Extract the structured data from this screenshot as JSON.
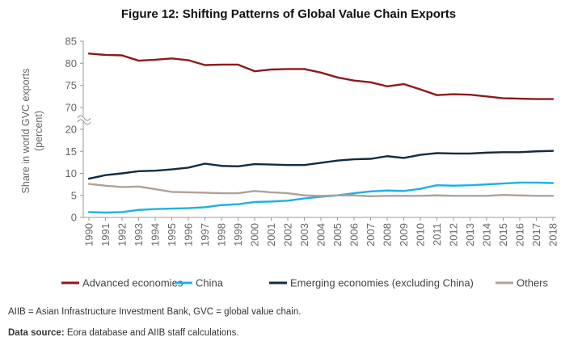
{
  "chart_data": {
    "type": "line",
    "title": "Figure 12: Shifting Patterns of Global Value Chain Exports",
    "ylabel_line1": "Share in world GVC exports",
    "ylabel_line2": "(percent)",
    "xlabel": "",
    "x": [
      "1990",
      "1991",
      "1992",
      "1993",
      "1994",
      "1995",
      "1996",
      "1997",
      "1998",
      "1999",
      "2000",
      "2001",
      "2002",
      "2003",
      "2004",
      "2005",
      "2006",
      "2007",
      "2008",
      "2009",
      "2010",
      "2011",
      "2012",
      "2013",
      "2014",
      "2015",
      "2016",
      "2017",
      "2018"
    ],
    "y_axis": {
      "broken": true,
      "lower_range": [
        0,
        20
      ],
      "upper_range": [
        70,
        85
      ],
      "ticks": [
        "0",
        "5",
        "10",
        "15",
        "20",
        "70",
        "75",
        "80",
        "85"
      ]
    },
    "grid": false,
    "legend_position": "bottom",
    "series": [
      {
        "name": "Advanced economies",
        "color": "#8b1a1f",
        "values": [
          82.2,
          81.9,
          81.8,
          80.6,
          80.8,
          81.1,
          80.7,
          79.6,
          79.7,
          79.7,
          78.2,
          78.6,
          78.7,
          78.7,
          77.9,
          76.8,
          76.1,
          75.7,
          74.8,
          75.3,
          74.1,
          72.8,
          73.0,
          72.9,
          72.5,
          72.1,
          72.0,
          71.9,
          71.9
        ]
      },
      {
        "name": "China",
        "color": "#1bb2e3",
        "values": [
          1.2,
          1.1,
          1.2,
          1.7,
          1.9,
          2.0,
          2.1,
          2.3,
          2.8,
          3.0,
          3.5,
          3.6,
          3.8,
          4.3,
          4.7,
          5.0,
          5.5,
          5.9,
          6.1,
          6.0,
          6.5,
          7.3,
          7.2,
          7.3,
          7.5,
          7.7,
          7.9,
          7.9,
          7.8
        ]
      },
      {
        "name": "Emerging economies (excluding China)",
        "color": "#122b40",
        "values": [
          8.8,
          9.6,
          10.0,
          10.5,
          10.6,
          10.9,
          11.3,
          12.2,
          11.7,
          11.6,
          12.1,
          12.0,
          11.9,
          11.9,
          12.4,
          12.9,
          13.2,
          13.3,
          13.9,
          13.5,
          14.2,
          14.6,
          14.5,
          14.5,
          14.7,
          14.8,
          14.8,
          15.0,
          15.1
        ]
      },
      {
        "name": "Others",
        "color": "#aea39a",
        "values": [
          7.6,
          7.2,
          6.9,
          7.0,
          6.4,
          5.8,
          5.7,
          5.6,
          5.5,
          5.5,
          6.0,
          5.7,
          5.5,
          5.0,
          4.9,
          5.0,
          5.0,
          4.8,
          4.9,
          4.9,
          4.9,
          5.0,
          4.9,
          4.9,
          4.9,
          5.1,
          5.0,
          4.9,
          4.9
        ]
      }
    ]
  },
  "footnotes": {
    "abbrev": "AIIB = Asian Infrastructure Investment Bank, GVC = global value chain.",
    "source_label": "Data source:",
    "source_text": " Eora database and AIIB staff calculations."
  }
}
